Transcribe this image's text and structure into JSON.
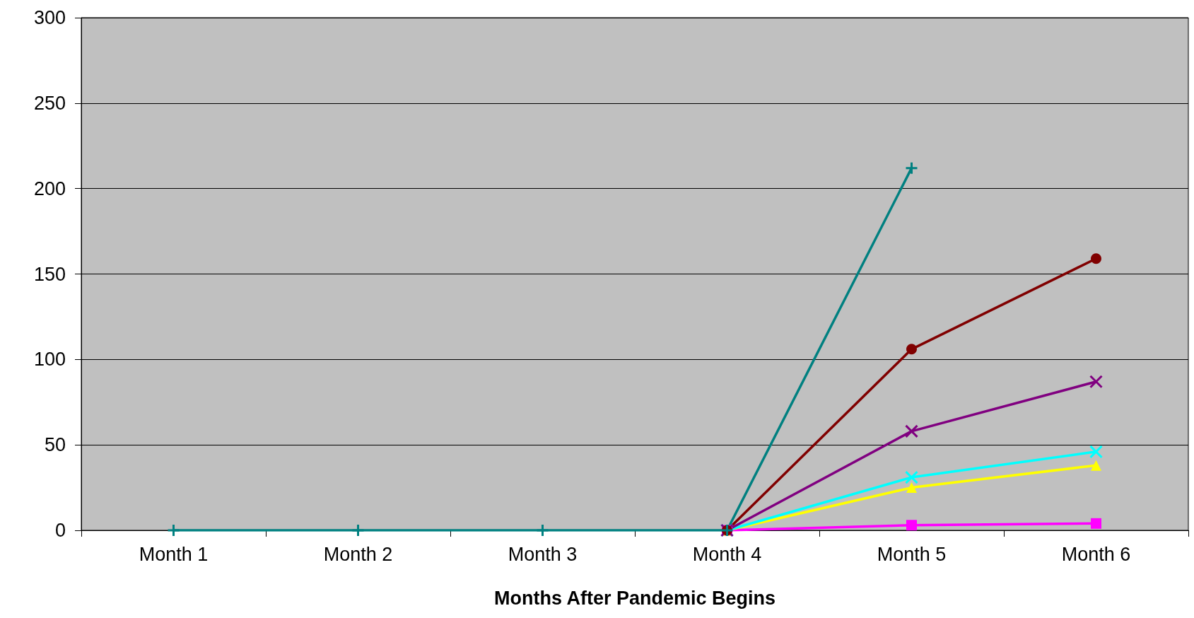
{
  "chart_data": {
    "type": "line",
    "xlabel": "Months After Pandemic Begins",
    "categories": [
      "Month 1",
      "Month 2",
      "Month 3",
      "Month 4",
      "Month 5",
      "Month 6"
    ],
    "series": [
      {
        "color": "#ff00ff",
        "marker": "square",
        "values": [
          null,
          null,
          null,
          0,
          3,
          4
        ]
      },
      {
        "color": "#ffff00",
        "marker": "triangle",
        "values": [
          null,
          null,
          null,
          0,
          25,
          38
        ]
      },
      {
        "color": "#00ffff",
        "marker": "cross",
        "values": [
          null,
          null,
          null,
          0,
          31,
          46
        ]
      },
      {
        "color": "#800080",
        "marker": "cross",
        "values": [
          null,
          null,
          null,
          0,
          58,
          87
        ]
      },
      {
        "color": "#800000",
        "marker": "circle",
        "values": [
          null,
          null,
          null,
          0,
          106,
          159
        ]
      },
      {
        "color": "#008080",
        "marker": "plus",
        "values": [
          0,
          0,
          0,
          0,
          212,
          null
        ]
      }
    ],
    "ylim": [
      0,
      300
    ],
    "yticks": [
      0,
      50,
      100,
      150,
      200,
      250,
      300
    ],
    "grid": "y",
    "line_style": "solid"
  }
}
